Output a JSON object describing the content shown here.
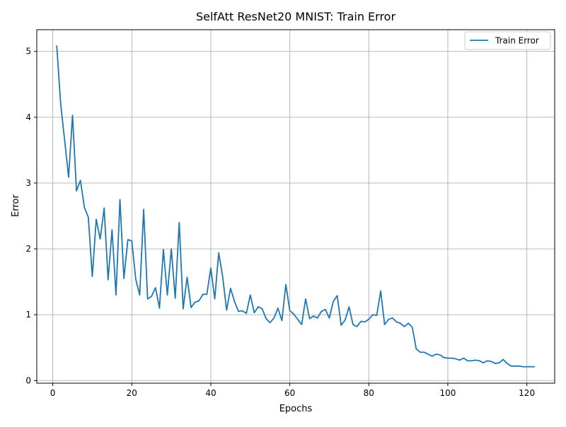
{
  "chart_data": {
    "type": "line",
    "title": "SelfAtt ResNet20 MNIST: Train Error",
    "xlabel": "Epochs",
    "ylabel": "Error",
    "xlim": [
      -4.05,
      127.05
    ],
    "ylim": [
      -0.04,
      5.33
    ],
    "xticks": [
      0,
      20,
      40,
      60,
      80,
      100,
      120
    ],
    "yticks": [
      0,
      1,
      2,
      3,
      4,
      5
    ],
    "grid": true,
    "legend_position": "top-right",
    "series": [
      {
        "name": "Train Error",
        "color": "#1f77b4",
        "x": [
          1,
          2,
          3,
          4,
          5,
          6,
          7,
          8,
          9,
          10,
          11,
          12,
          13,
          14,
          15,
          16,
          17,
          18,
          19,
          20,
          21,
          22,
          23,
          24,
          25,
          26,
          27,
          28,
          29,
          30,
          31,
          32,
          33,
          34,
          35,
          36,
          37,
          38,
          39,
          40,
          41,
          42,
          43,
          44,
          45,
          46,
          47,
          48,
          49,
          50,
          51,
          52,
          53,
          54,
          55,
          56,
          57,
          58,
          59,
          60,
          61,
          62,
          63,
          64,
          65,
          66,
          67,
          68,
          69,
          70,
          71,
          72,
          73,
          74,
          75,
          76,
          77,
          78,
          79,
          80,
          81,
          82,
          83,
          84,
          85,
          86,
          87,
          88,
          89,
          90,
          91,
          92,
          93,
          94,
          95,
          96,
          97,
          98,
          99,
          100,
          101,
          102,
          103,
          104,
          105,
          106,
          107,
          108,
          109,
          110,
          111,
          112,
          113,
          114,
          115,
          116,
          117,
          118,
          119,
          120,
          121,
          122
        ],
        "values": [
          5.09,
          4.2,
          3.65,
          3.09,
          4.03,
          2.88,
          3.04,
          2.63,
          2.48,
          1.58,
          2.45,
          2.15,
          2.62,
          1.53,
          2.29,
          1.3,
          2.75,
          1.55,
          2.14,
          2.12,
          1.54,
          1.3,
          2.6,
          1.24,
          1.28,
          1.41,
          1.1,
          1.99,
          1.3,
          2.0,
          1.25,
          2.4,
          1.09,
          1.57,
          1.11,
          1.19,
          1.21,
          1.31,
          1.31,
          1.71,
          1.24,
          1.94,
          1.58,
          1.07,
          1.4,
          1.2,
          1.05,
          1.06,
          1.02,
          1.3,
          1.03,
          1.12,
          1.09,
          0.94,
          0.88,
          0.95,
          1.1,
          0.91,
          1.46,
          1.06,
          1.01,
          0.93,
          0.85,
          1.24,
          0.94,
          0.98,
          0.95,
          1.05,
          1.08,
          0.95,
          1.2,
          1.29,
          0.84,
          0.92,
          1.12,
          0.85,
          0.82,
          0.9,
          0.89,
          0.93,
          1.0,
          0.99,
          1.36,
          0.85,
          0.93,
          0.95,
          0.89,
          0.87,
          0.82,
          0.87,
          0.81,
          0.48,
          0.43,
          0.43,
          0.4,
          0.37,
          0.4,
          0.39,
          0.35,
          0.34,
          0.34,
          0.33,
          0.31,
          0.34,
          0.3,
          0.3,
          0.31,
          0.3,
          0.27,
          0.3,
          0.29,
          0.26,
          0.27,
          0.32,
          0.26,
          0.22,
          0.22,
          0.22,
          0.21,
          0.21,
          0.21,
          0.21
        ]
      }
    ]
  }
}
